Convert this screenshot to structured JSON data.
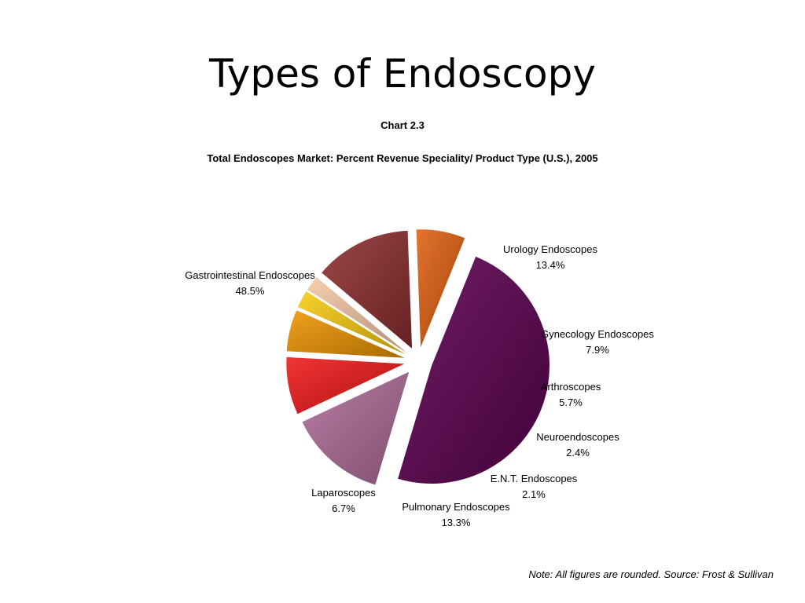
{
  "slide": {
    "title": "Types of Endoscopy",
    "note": "Note: All figures are rounded. Source: Frost & Sullivan"
  },
  "chart_data": {
    "type": "pie",
    "chart_label": "Chart 2.3",
    "title": "Total Endoscopes Market: Percent Revenue Speciality/ Product Type (U.S.), 2005",
    "unit": "%",
    "slices": [
      {
        "name": "Gastrointestinal Endoscopes",
        "value": 48.5,
        "label": "48.5%",
        "color": "#5c0050"
      },
      {
        "name": "Urology Endoscopes",
        "value": 13.4,
        "label": "13.4%",
        "color": "#b06c9a"
      },
      {
        "name": "Gynecology Endoscopes",
        "value": 7.9,
        "label": "7.9%",
        "color": "#f01818"
      },
      {
        "name": "Arthroscopes",
        "value": 5.7,
        "label": "5.7%",
        "color": "#ee9400"
      },
      {
        "name": "Neuroendoscopes",
        "value": 2.4,
        "label": "2.4%",
        "color": "#f8cc10"
      },
      {
        "name": "E.N.T. Endoscopes",
        "value": 2.1,
        "label": "2.1%",
        "color": "#f6c9a6"
      },
      {
        "name": "Pulmonary Endoscopes",
        "value": 13.3,
        "label": "13.3%",
        "color": "#8e2e2e"
      },
      {
        "name": "Laparoscopes",
        "value": 6.7,
        "label": "6.7%",
        "color": "#e06010"
      }
    ]
  }
}
